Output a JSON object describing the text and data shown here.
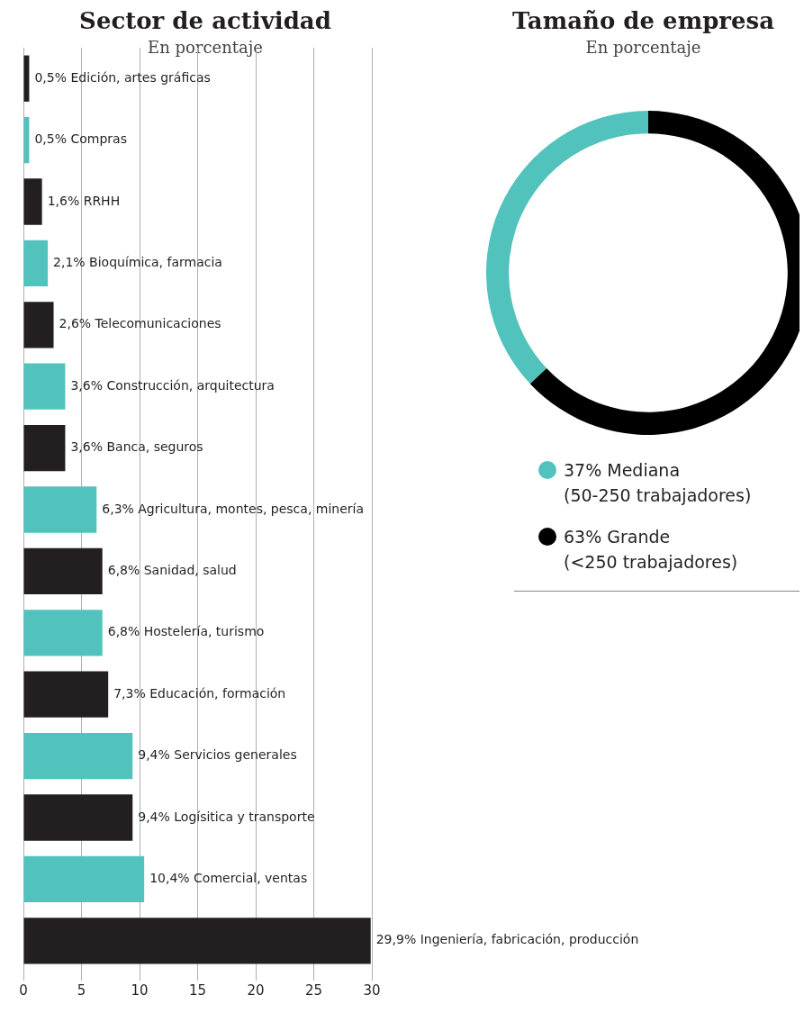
{
  "chart_data": [
    {
      "type": "bar",
      "title": "Sector de actividad",
      "subtitle": "En porcentaje",
      "orientation": "horizontal",
      "categories": [
        "Edición, artes gráficas",
        "Compras",
        "RRHH",
        "Bioquímica, farmacia",
        "Telecomunicaciones",
        "Construcción, arquitectura",
        "Banca, seguros",
        "Agricultura, montes, pesca, minería",
        "Sanidad, salud",
        "Hostelería, turismo",
        "Educación, formación",
        "Servicios generales",
        "Logísitica y transporte",
        "Comercial, ventas",
        "Ingeniería, fabricación, producción"
      ],
      "values": [
        0.5,
        0.5,
        1.6,
        2.1,
        2.6,
        3.6,
        3.6,
        6.3,
        6.8,
        6.8,
        7.3,
        9.4,
        9.4,
        10.4,
        29.9
      ],
      "value_labels": [
        "0,5%",
        "0,5%",
        "1,6%",
        "2,1%",
        "2,6%",
        "3,6%",
        "3,6%",
        "6,3%",
        "6,8%",
        "6,8%",
        "7,3%",
        "9,4%",
        "9,4%",
        "10,4%",
        "29,9%"
      ],
      "colors": [
        "#231f20",
        "#52c3bc",
        "#231f20",
        "#52c3bc",
        "#231f20",
        "#52c3bc",
        "#231f20",
        "#52c3bc",
        "#231f20",
        "#52c3bc",
        "#231f20",
        "#52c3bc",
        "#231f20",
        "#52c3bc",
        "#231f20"
      ],
      "xlim": [
        0,
        30
      ],
      "xticks": [
        0,
        5,
        10,
        15,
        20,
        25,
        30
      ],
      "grid": "x",
      "tick_labels": "x"
    },
    {
      "type": "donut",
      "title": "Tamaño de empresa",
      "subtitle": "En porcentaje",
      "categories": [
        "Mediana\n(50-250 trabajadores)",
        "Grande\n(<250 trabajadores)"
      ],
      "values": [
        37,
        63
      ],
      "value_labels": [
        "37%",
        "63%"
      ],
      "colors": [
        "#52c3bc",
        "#000000"
      ],
      "legend": "bottom"
    }
  ]
}
